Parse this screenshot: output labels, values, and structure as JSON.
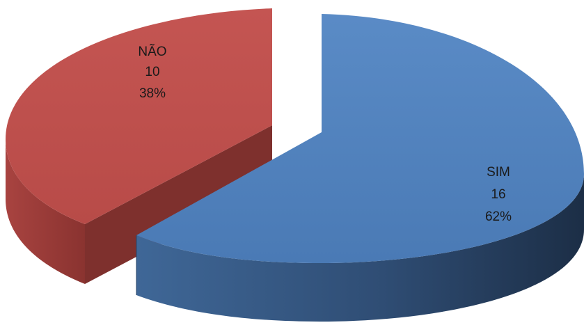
{
  "chart_data": {
    "type": "pie",
    "style": "3d-exploded",
    "title": "",
    "slices": [
      {
        "label": "SIM",
        "value": 16,
        "percent": "62%",
        "color": "#4f81bd"
      },
      {
        "label": "NÃO",
        "value": 10,
        "percent": "38%",
        "color": "#c0504d"
      }
    ],
    "legend": "none"
  }
}
